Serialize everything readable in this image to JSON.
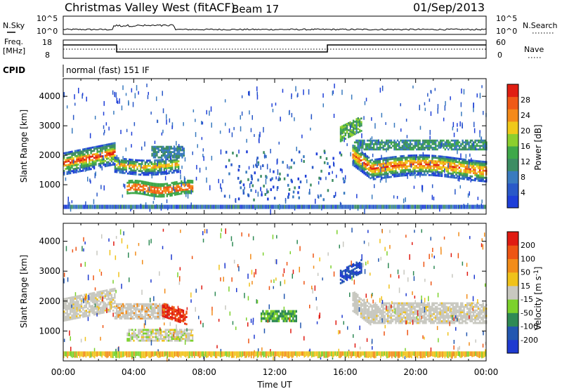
{
  "header": {
    "title": "Christmas Valley West (fitACF)",
    "beam": "Beam 17",
    "date": "01/Sep/2013"
  },
  "noise_panel": {
    "left_label": "N.Sky",
    "right_label": "N.Search",
    "left_ticks": [
      "10^5",
      "10^0"
    ],
    "right_ticks": [
      "10^5",
      "10^0"
    ]
  },
  "freq_panel": {
    "left_label_1": "Freq.",
    "left_label_2": "[MHz]",
    "right_label": "Nave",
    "left_ticks": [
      "18",
      "8"
    ],
    "right_ticks": [
      "60",
      "0"
    ]
  },
  "cpid": {
    "label": "CPID",
    "text": "normal (fast) 151 IF"
  },
  "chart_data": [
    {
      "type": "heatmap",
      "ylabel": "Slant Range [km]",
      "yticks": [
        "1000",
        "2000",
        "3000",
        "4000"
      ],
      "ylim": [
        0,
        4600
      ],
      "xlim": [
        0,
        24
      ],
      "colorbar": {
        "label": "Power [dB]",
        "tick_labels": [
          "4",
          "8",
          "12",
          "16",
          "20",
          "24",
          "28"
        ],
        "colors": [
          "#1f3fd8",
          "#2a59c8",
          "#3a7bbf",
          "#3d8d63",
          "#3fa84a",
          "#8ccf2e",
          "#f0c919",
          "#f48a1a",
          "#ef5a17",
          "#e01e12"
        ]
      },
      "regions": [
        {
          "t": [
            0,
            3
          ],
          "r": [
            1400,
            2300
          ],
          "color": "green-red band"
        },
        {
          "t": [
            2.8,
            7
          ],
          "r": [
            1400,
            2000
          ],
          "color": "green-red band"
        },
        {
          "t": [
            3.5,
            7.5
          ],
          "r": [
            600,
            1200
          ],
          "color": "orange-red"
        },
        {
          "t": [
            16.5,
            24
          ],
          "r": [
            1200,
            2500
          ],
          "color": "green-red band"
        },
        {
          "t": [
            15.8,
            17
          ],
          "r": [
            2400,
            3200
          ],
          "color": "green"
        }
      ]
    },
    {
      "type": "heatmap",
      "ylabel": "Slant Range [km]",
      "yticks": [
        "1000",
        "2000",
        "3000",
        "4000"
      ],
      "ylim": [
        0,
        4600
      ],
      "xlim": [
        0,
        24
      ],
      "xticks": [
        "00:00",
        "04:00",
        "08:00",
        "12:00",
        "16:00",
        "20:00",
        "00:00"
      ],
      "xlabel": "Time UT",
      "colorbar": {
        "label": "Velocity [m s^-1]",
        "tick_labels": [
          "200",
          "100",
          "50",
          "15",
          "-15",
          "-50",
          "-100",
          "-200"
        ],
        "colors": [
          "#1e3ad0",
          "#2357b0",
          "#2f8a55",
          "#7cd12c",
          "#c8c8c0",
          "#f0c21a",
          "#f28c19",
          "#ee5514",
          "#e01b12"
        ]
      },
      "regions": [
        {
          "t": [
            0,
            3
          ],
          "r": [
            1300,
            2300
          ],
          "color": "gray"
        },
        {
          "t": [
            2.8,
            6
          ],
          "r": [
            1400,
            2000
          ],
          "color": "gray"
        },
        {
          "t": [
            5.5,
            7
          ],
          "r": [
            1400,
            1900
          ],
          "color": "red"
        },
        {
          "t": [
            3.5,
            7.5
          ],
          "r": [
            600,
            1100
          ],
          "color": "gray"
        },
        {
          "t": [
            16.5,
            24
          ],
          "r": [
            1200,
            2300
          ],
          "color": "gray"
        },
        {
          "t": [
            15.8,
            17
          ],
          "r": [
            2500,
            3200
          ],
          "color": "blue"
        }
      ]
    }
  ]
}
